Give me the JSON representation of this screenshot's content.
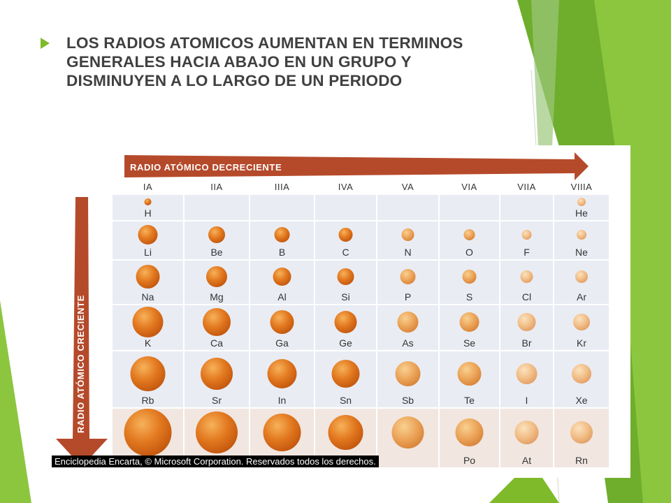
{
  "slide": {
    "title_lines": [
      "LOS RADIOS ATOMICOS AUMENTAN EN TERMINOS",
      "GENERALES HACIA ABAJO EN UN GRUPO Y",
      "DISMINUYEN A LO LARGO DE UN PERIODO"
    ]
  },
  "figure": {
    "arrow_top_label": "RADIO ATÓMICO DECRECIENTE",
    "arrow_left_label": "RADIO ATÓMICO CRECIENTE",
    "groups": [
      "IA",
      "IIA",
      "IIIA",
      "IVA",
      "VA",
      "VIA",
      "VIIA",
      "VIIIA"
    ],
    "rows": [
      [
        "H",
        "",
        "",
        "",
        "",
        "",
        "",
        "He"
      ],
      [
        "Li",
        "Be",
        "B",
        "C",
        "N",
        "O",
        "F",
        "Ne"
      ],
      [
        "Na",
        "Mg",
        "Al",
        "Si",
        "P",
        "S",
        "Cl",
        "Ar"
      ],
      [
        "K",
        "Ca",
        "Ga",
        "Ge",
        "As",
        "Se",
        "Br",
        "Kr"
      ],
      [
        "Rb",
        "Sr",
        "In",
        "Sn",
        "Sb",
        "Te",
        "I",
        "Xe"
      ],
      [
        "",
        "",
        "",
        "",
        "",
        "Po",
        "At",
        "Rn"
      ]
    ],
    "credit": "Enciclopedia Encarta, © Microsoft Corporation. Reservados todos los derechos.",
    "colors": {
      "arrow": "#b54a2b",
      "accent_green": "#7fba2a",
      "cell_light": "#e9ecf3",
      "cell_light_alt": "#f1e6e0"
    }
  }
}
